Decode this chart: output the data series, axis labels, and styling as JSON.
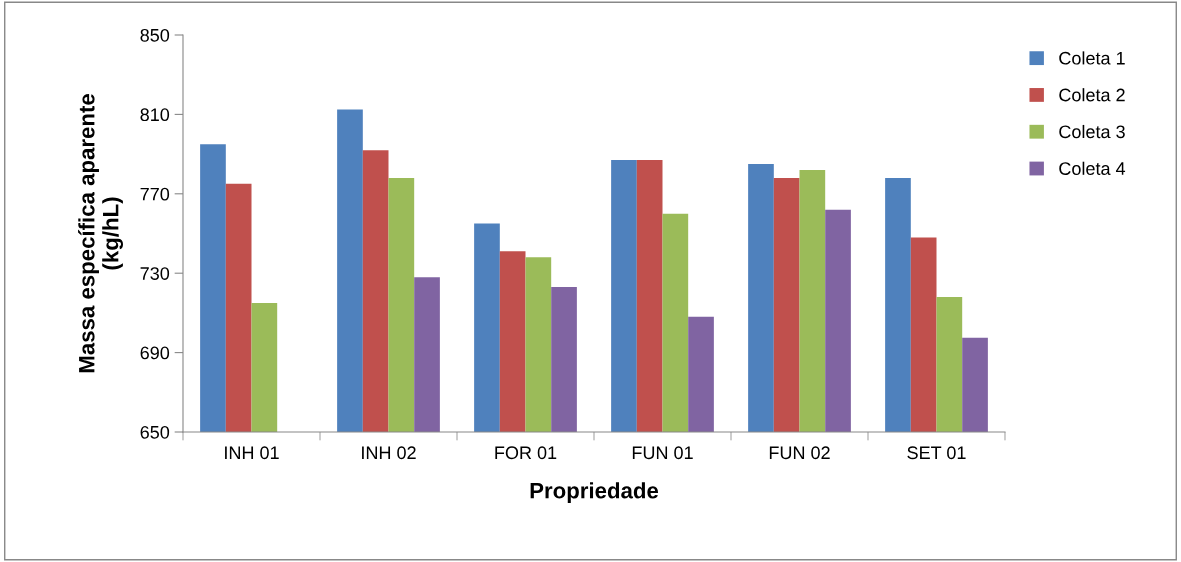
{
  "chart_data": {
    "type": "bar",
    "xlabel": "Propriedade",
    "ylabel": "Massa específica aparente\n(kg/hL)",
    "categories": [
      "INH 01",
      "INH 02",
      "FOR 01",
      "FUN 01",
      "FUN 02",
      "SET 01"
    ],
    "series": [
      {
        "name": "Coleta 1",
        "color": "#4f81bd",
        "values": [
          795,
          812.5,
          755,
          787,
          785,
          778
        ]
      },
      {
        "name": "Coleta 2",
        "color": "#c0504d",
        "values": [
          775,
          792,
          741,
          787,
          778,
          748
        ]
      },
      {
        "name": "Coleta 3",
        "color": "#9bbb59",
        "values": [
          715,
          778,
          738,
          760,
          782,
          718
        ]
      },
      {
        "name": "Coleta 4",
        "color": "#8064a2",
        "values": [
          null,
          728,
          723,
          708,
          762,
          697.5
        ]
      }
    ],
    "ylim": [
      650,
      850
    ],
    "yticks": [
      650,
      690,
      730,
      770,
      810,
      850
    ],
    "grid": false,
    "legend": "top right"
  }
}
